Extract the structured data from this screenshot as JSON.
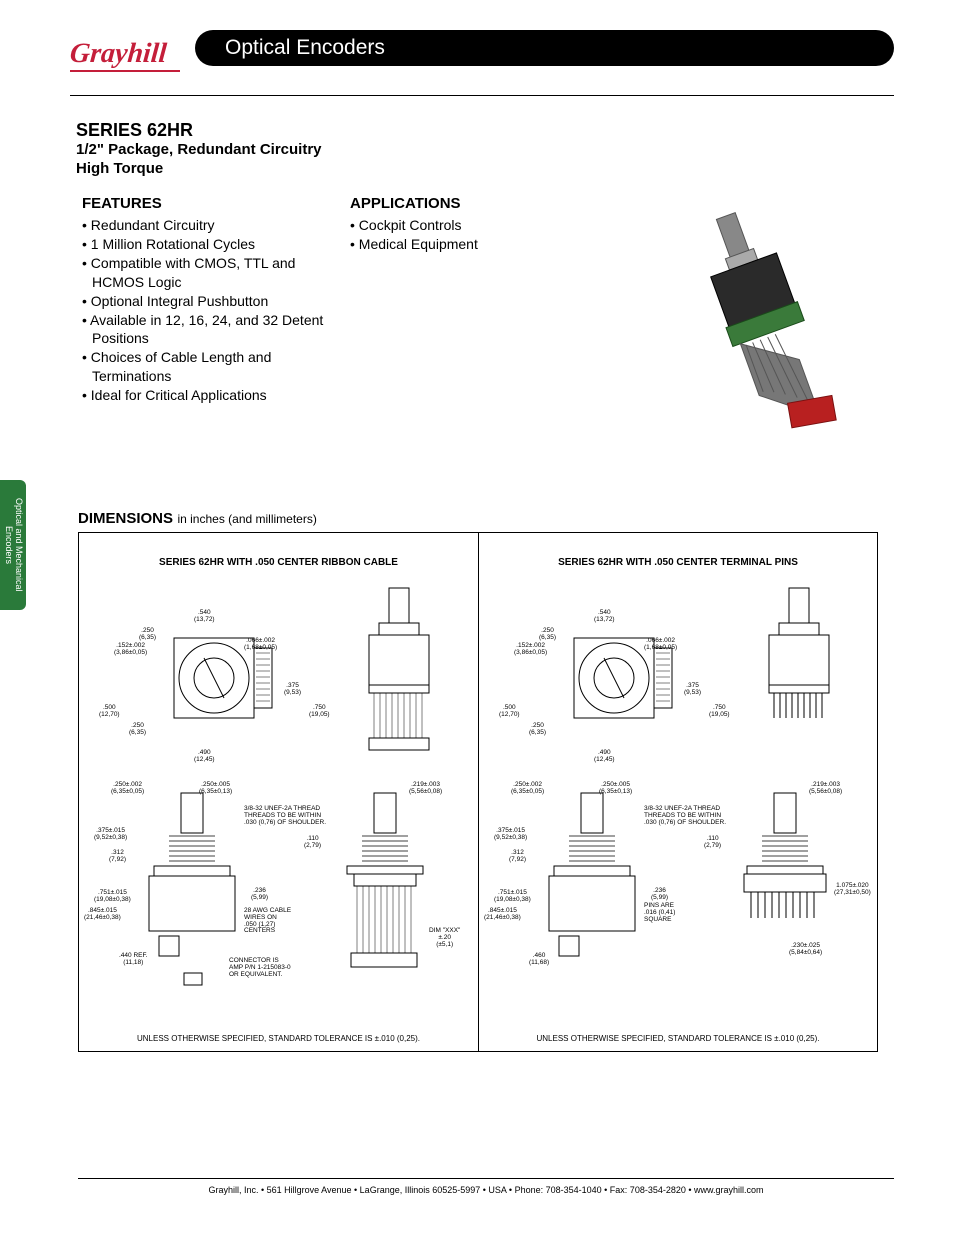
{
  "header": {
    "logo_text": "Grayhill",
    "category": "Optical Encoders"
  },
  "series": {
    "title": "SERIES 62HR",
    "subtitle_line1": "1/2\" Package, Redundant Circuitry",
    "subtitle_line2": "High Torque"
  },
  "features": {
    "heading": "FEATURES",
    "items": [
      "Redundant Circuitry",
      "1 Million Rotational Cycles",
      "Compatible with CMOS, TTL and HCMOS Logic",
      "Optional Integral Pushbutton",
      "Available in 12, 16, 24, and 32 Detent Positions",
      "Choices of Cable Length and Terminations",
      "Ideal for Critical Applications"
    ]
  },
  "applications": {
    "heading": "APPLICATIONS",
    "items": [
      "Cockpit Controls",
      "Medical Equipment"
    ]
  },
  "side_tab": {
    "line1": "Optical and Mechanical",
    "line2": "Encoders",
    "bg_color": "#2a7a3a"
  },
  "dimensions": {
    "heading": "DIMENSIONS",
    "sub": "in inches (and millimeters)",
    "left_panel_title": "SERIES 62HR WITH .050 CENTER RIBBON CABLE",
    "right_panel_title": "SERIES 62HR WITH .050 CENTER TERMINAL PINS",
    "tolerance_note": "UNLESS OTHERWISE SPECIFIED, STANDARD TOLERANCE IS ±.010 (0,25).",
    "common_labels": {
      "d540": ".540\n(13,72)",
      "d250": ".250\n(6,35)",
      "d152": ".152±.002\n(3,86±0,05)",
      "d066": ".066±.002\n(1,68±0,05)",
      "d375s": ".375\n(9,53)",
      "d500": ".500\n(12,70)",
      "d750": ".750\n(19,05)",
      "d490": ".490\n(12,45)",
      "d250_002": ".250±.002\n(6,35±0,05)",
      "d250_005": ".250±.005\n(6,35±0,13)",
      "d219": ".219±.003\n(5,56±0,08)",
      "thread": "3/8-32 UNEF-2A THREAD\nTHREADS TO BE WITHIN\n.030 (0,76) OF SHOULDER.",
      "d375_015": ".375±.015\n(9,52±0,38)",
      "d110": ".110\n(2,79)",
      "d312": ".312\n(7,92)",
      "d751": ".751±.015\n(19,08±0,38)",
      "d845": ".845±.015\n(21,46±0,38)",
      "d236": ".236\n(5,99)"
    },
    "left_only": {
      "d440": ".440 REF.\n(11,18)",
      "awg": "28 AWG CABLE\nWIRES ON\n.050 (1,27)\nCENTERS",
      "connector": "CONNECTOR IS\nAMP P/N 1-215083-0\nOR EQUIVALENT.",
      "dimxxx": "DIM \"XXX\"\n±.20\n(±5,1)"
    },
    "right_only": {
      "d460": ".460\n(11,68)",
      "pins": "PINS ARE\n.016 (0,41)\nSQUARE",
      "d1075": "1.075±.020\n(27,31±0,50)",
      "d230": ".230±.025\n(5,84±0,64)"
    }
  },
  "product_image": {
    "body_color": "#2a2a2a",
    "pcb_color": "#3a7a3a",
    "cable_color": "#777777",
    "connector_color": "#b82020",
    "shaft_color": "#888888"
  },
  "footer": {
    "text": "Grayhill, Inc. • 561 Hillgrove Avenue • LaGrange, Illinois  60525-5997 • USA • Phone: 708-354-1040 • Fax: 708-354-2820 • www.grayhill.com"
  },
  "colors": {
    "brand_red": "#c41e3a",
    "black": "#000000"
  }
}
